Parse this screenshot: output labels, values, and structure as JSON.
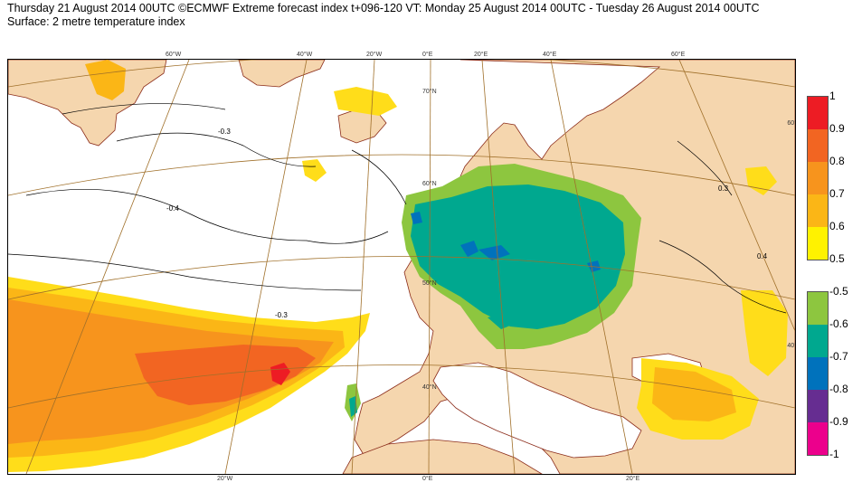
{
  "header": {
    "line1": "Thursday 21 August 2014 00UTC ©ECMWF Extreme forecast index t+096-120 VT: Monday 25 August 2014 00UTC - Tuesday 26 August 2014 00UTC",
    "line2": "Surface: 2 metre temperature index"
  },
  "map": {
    "top_lon_labels": [
      "60°W",
      "40°W",
      "20°W",
      "0°E",
      "20°E",
      "40°E",
      "60°E"
    ],
    "bottom_lon_labels": [
      "20°W",
      "0°E",
      "20°E"
    ],
    "lat_labels": [
      "70°N",
      "60°N",
      "50°N",
      "40°N"
    ],
    "right_lat_labels": [
      "60°",
      "40°"
    ],
    "contour_labels": [
      "-0.3",
      "-0.4",
      "0.3",
      "0.4"
    ]
  },
  "legend_warm": {
    "labels": [
      "1",
      "0.9",
      "0.8",
      "0.7",
      "0.6",
      "0.5"
    ],
    "colors": [
      "#ed1c24",
      "#f26522",
      "#f7941d",
      "#fbb616",
      "#ffde17",
      "#fff200"
    ]
  },
  "legend_cold": {
    "labels": [
      "-0.5",
      "-0.6",
      "-0.7",
      "-0.8",
      "-0.9",
      "-1"
    ],
    "colors": [
      "#8dc63f",
      "#00a88f",
      "#0072bc",
      "#662d91",
      "#ec008c"
    ]
  },
  "colors": {
    "land": "#f5d6ae",
    "coast": "#8b2c1a",
    "graticule": "#a0702a"
  }
}
